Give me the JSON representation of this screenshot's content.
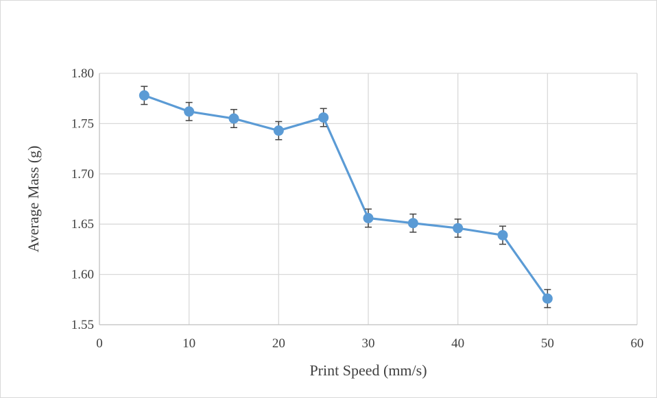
{
  "chart_data": {
    "type": "line",
    "title": "",
    "xlabel": "Print Speed (mm/s)",
    "ylabel": "Average Mass (g)",
    "xlim": [
      0,
      60
    ],
    "ylim": [
      1.55,
      1.8
    ],
    "x_ticks": [
      "0",
      "10",
      "20",
      "30",
      "40",
      "50",
      "60"
    ],
    "y_ticks": [
      "1.55",
      "1.60",
      "1.65",
      "1.70",
      "1.75",
      "1.80"
    ],
    "x_tick_values": [
      0,
      10,
      20,
      30,
      40,
      50,
      60
    ],
    "y_tick_values": [
      1.55,
      1.6,
      1.65,
      1.7,
      1.75,
      1.8
    ],
    "grid": true,
    "series": [
      {
        "color": "#5b9bd5",
        "x": [
          5,
          10,
          15,
          20,
          25,
          30,
          35,
          40,
          45,
          50
        ],
        "y": [
          1.778,
          1.762,
          1.755,
          1.743,
          1.756,
          1.656,
          1.651,
          1.646,
          1.639,
          1.576
        ],
        "error": [
          0.009,
          0.009,
          0.009,
          0.009,
          0.009,
          0.009,
          0.009,
          0.009,
          0.009,
          0.009
        ]
      }
    ]
  }
}
